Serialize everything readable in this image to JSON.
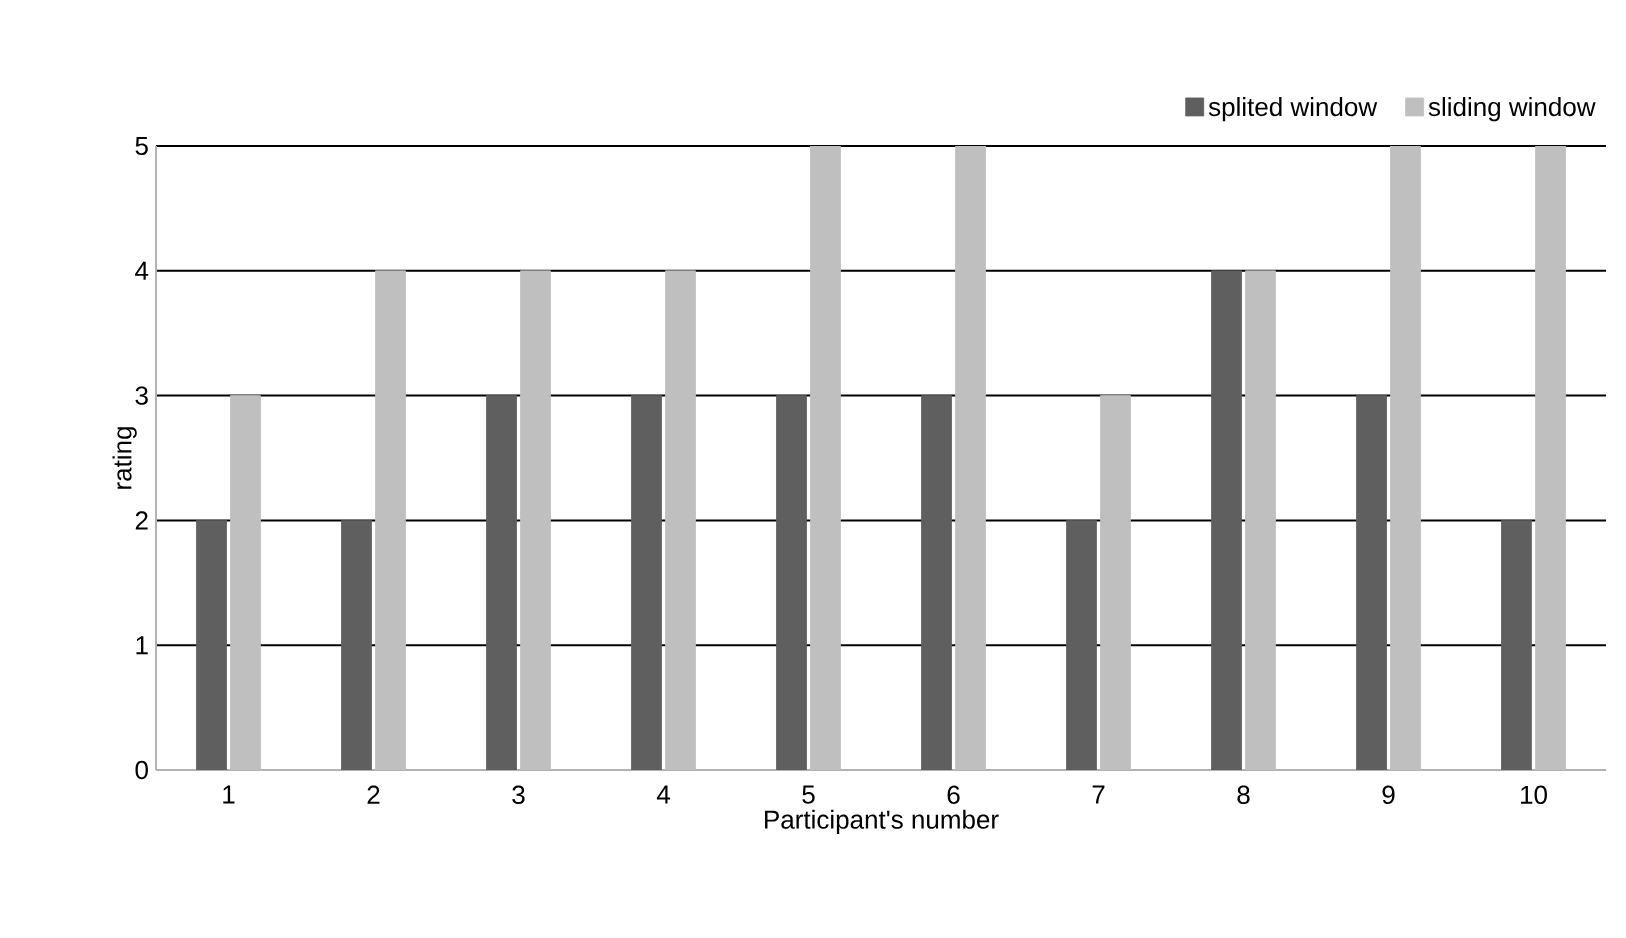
{
  "chart_data": {
    "type": "bar",
    "xlabel": "Participant's number",
    "ylabel": "rating",
    "categories": [
      "1",
      "2",
      "3",
      "4",
      "5",
      "6",
      "7",
      "8",
      "9",
      "10"
    ],
    "series": [
      {
        "name": "splited window",
        "color": "#5f5f5f",
        "values": [
          2,
          2,
          3,
          3,
          3,
          3,
          2,
          4,
          3,
          2
        ]
      },
      {
        "name": "sliding window",
        "color": "#bfbfbf",
        "values": [
          3,
          4,
          4,
          4,
          5,
          5,
          3,
          4,
          5,
          5
        ]
      }
    ],
    "ylim": [
      0,
      5
    ],
    "yticks": [
      0,
      1,
      2,
      3,
      4,
      5
    ],
    "grid": "y",
    "legend": "top right"
  }
}
